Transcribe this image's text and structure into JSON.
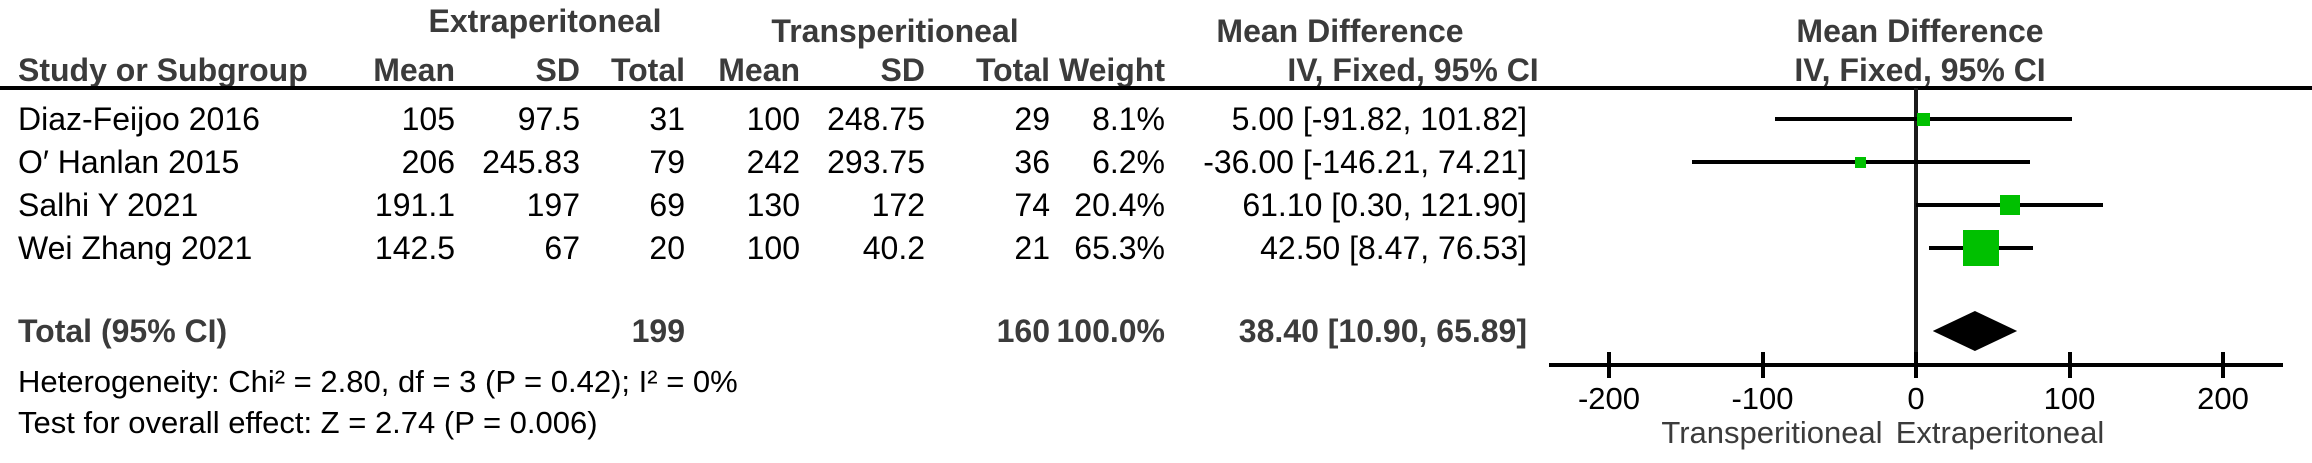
{
  "table": {
    "group1_header": "Extraperitoneal",
    "group2_header": "Transperitioneal",
    "columns": {
      "study": "Study or Subgroup",
      "mean": "Mean",
      "sd": "SD",
      "total": "Total",
      "weight": "Weight",
      "md_header_line1": "Mean Difference",
      "md_header_line2": "IV, Fixed, 95% CI"
    },
    "plot_header_line1": "Mean Difference",
    "plot_header_line2": "IV, Fixed, 95% CI",
    "rows": [
      {
        "study": "Diaz-Feijoo 2016",
        "mean1": "105",
        "sd1": "97.5",
        "total1": "31",
        "mean2": "100",
        "sd2": "248.75",
        "total2": "29",
        "weight": "8.1%",
        "ci": "5.00 [-91.82, 101.82]"
      },
      {
        "study": "O′ Hanlan 2015",
        "mean1": "206",
        "sd1": "245.83",
        "total1": "79",
        "mean2": "242",
        "sd2": "293.75",
        "total2": "36",
        "weight": "6.2%",
        "ci": "-36.00 [-146.21, 74.21]"
      },
      {
        "study": "Salhi Y 2021",
        "mean1": "191.1",
        "sd1": "197",
        "total1": "69",
        "mean2": "130",
        "sd2": "172",
        "total2": "74",
        "weight": "20.4%",
        "ci": "61.10 [0.30, 121.90]"
      },
      {
        "study": "Wei Zhang 2021",
        "mean1": "142.5",
        "sd1": "67",
        "total1": "20",
        "mean2": "100",
        "sd2": "40.2",
        "total2": "21",
        "weight": "65.3%",
        "ci": "42.50 [8.47, 76.53]"
      }
    ],
    "total_row": {
      "label": "Total (95% CI)",
      "total1": "199",
      "total2": "160",
      "weight": "100.0%",
      "ci": "38.40 [10.90, 65.89]"
    },
    "heterogeneity": "Heterogeneity: Chi² = 2.80, df = 3 (P = 0.42); I² = 0%",
    "overall_effect": "Test for overall effect: Z = 2.74 (P = 0.006)"
  },
  "chart_data": {
    "type": "forest",
    "effect_measure": "Mean Difference, IV, Fixed, 95% CI",
    "studies": [
      {
        "name": "Diaz-Feijoo 2016",
        "md": 5.0,
        "ci": [
          -91.82,
          101.82
        ],
        "weight_pct": 8.1
      },
      {
        "name": "O′ Hanlan 2015",
        "md": -36.0,
        "ci": [
          -146.21,
          74.21
        ],
        "weight_pct": 6.2
      },
      {
        "name": "Salhi Y 2021",
        "md": 61.1,
        "ci": [
          0.3,
          121.9
        ],
        "weight_pct": 20.4
      },
      {
        "name": "Wei Zhang 2021",
        "md": 42.5,
        "ci": [
          8.47,
          76.53
        ],
        "weight_pct": 65.3
      }
    ],
    "total": {
      "md": 38.4,
      "ci": [
        10.9,
        65.89
      ],
      "weight_pct": 100.0
    },
    "axis": {
      "ticks": [
        -200,
        -100,
        0,
        100,
        200
      ],
      "xlim": [
        -240,
        240
      ],
      "left_label": "Transperitioneal",
      "right_label": "Extraperitoneal"
    },
    "marker_color": "#00c000",
    "diamond_color": "#000000"
  }
}
